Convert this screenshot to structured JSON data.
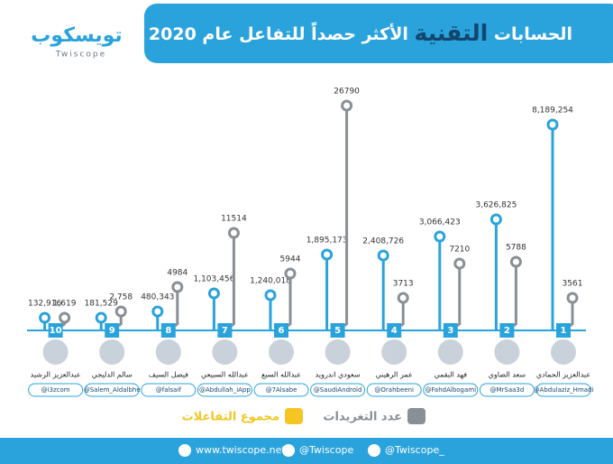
{
  "header": {
    "title_parts": [
      "الحسابات",
      "التقنية",
      "الأكثر حصداً للتفاعل عام 2020"
    ],
    "logo": {
      "arabic": "تويسكوب",
      "latin": "Twiscope"
    }
  },
  "accounts": [
    {
      "rank": "1",
      "name": "عبدالعزيز الحمادي",
      "handle": "@Abdulaziz_Hmadi",
      "interactions": "8,189,254",
      "tweets": "3561"
    },
    {
      "rank": "2",
      "name": "سعد الضاوي",
      "handle": "@MrSaa3d",
      "interactions": "3,626,825",
      "tweets": "5788"
    },
    {
      "rank": "3",
      "name": "فهد البقمي",
      "handle": "@FahdAlbogami",
      "interactions": "3,066,423",
      "tweets": "7210"
    },
    {
      "rank": "4",
      "name": "عمر الرهيني",
      "handle": "@Orahbeeni",
      "interactions": "2,408,726",
      "tweets": "3713"
    },
    {
      "rank": "5",
      "name": "سعودي اندرويد",
      "handle": "@SaudiAndroid",
      "interactions": "1,895,173",
      "tweets": "26790"
    },
    {
      "rank": "6",
      "name": "عبدالله السبع",
      "handle": "@7Alsabe",
      "interactions": "1,240,018",
      "tweets": "5944"
    },
    {
      "rank": "7",
      "name": "عبدالله السبيعي",
      "handle": "@Abdullah_iApp",
      "interactions": "1,103,456",
      "tweets": "11514"
    },
    {
      "rank": "8",
      "name": "فيصل السيف",
      "handle": "@falsaif",
      "interactions": "480,343",
      "tweets": "4984"
    },
    {
      "rank": "9",
      "name": "سالم الدليجي",
      "handle": "@Salem_Aldalbhe",
      "interactions": "181,529",
      "tweets": "2,758"
    },
    {
      "rank": "10",
      "name": "عبدالعزيز الرشيد",
      "handle": "@i3zcom",
      "interactions": "132,916",
      "tweets": "1,619"
    }
  ],
  "legend": {
    "tweets": "عدد التغريدات",
    "interactions": "مجموع التفاعلات"
  },
  "footer": {
    "website": "www.twiscope.net",
    "snapchat": "@Twiscope",
    "twitter": "@Twiscope_"
  }
}
